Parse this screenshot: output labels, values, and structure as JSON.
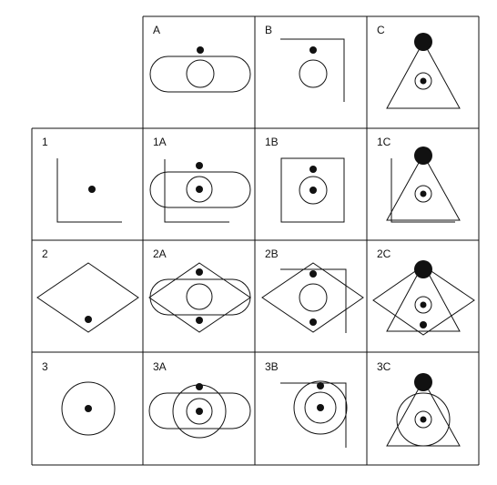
{
  "columns": [
    "A",
    "B",
    "C"
  ],
  "rows": [
    "1",
    "2",
    "3"
  ],
  "cells": {
    "A": "A",
    "B": "B",
    "C": "C",
    "1": "1",
    "1A": "1A",
    "1B": "1B",
    "1C": "1C",
    "2": "2",
    "2A": "2A",
    "2B": "2B",
    "2C": "2C",
    "3": "3",
    "3A": "3A",
    "3B": "3B",
    "3C": "3C"
  }
}
